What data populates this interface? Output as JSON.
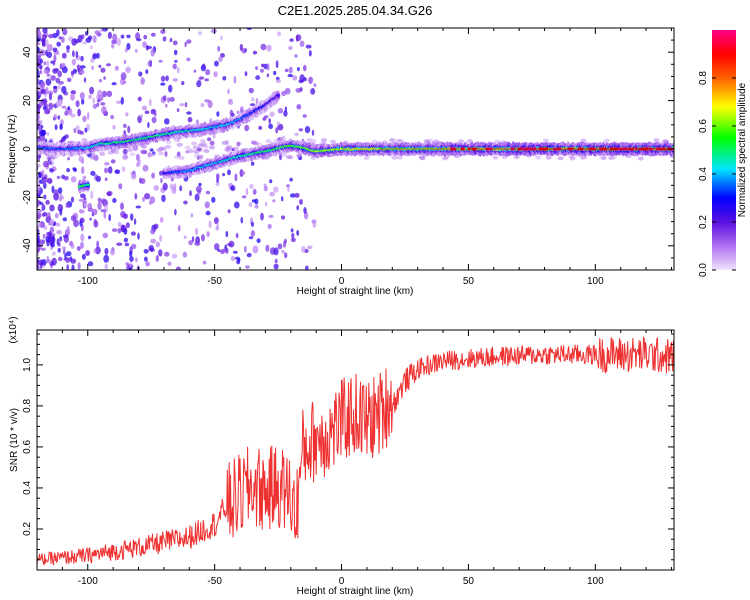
{
  "title": "C2E1.2025.285.04.34.G26",
  "chart_data": [
    {
      "type": "heatmap",
      "name": "spectrogram",
      "xlabel": "Height of straight line (km)",
      "ylabel": "Frequency (Hz)",
      "xlim": [
        -120,
        131
      ],
      "ylim": [
        -50,
        50
      ],
      "x_ticks": [
        -100,
        -50,
        0,
        50,
        100
      ],
      "y_ticks": [
        -40,
        -20,
        0,
        20,
        40
      ],
      "colorbar": {
        "label": "Normalized spectral amplitude",
        "range": [
          0,
          1
        ],
        "ticks": [
          0.0,
          0.2,
          0.4,
          0.6,
          0.8
        ],
        "colors": [
          "#e8d4f8",
          "#8a2be2",
          "#0000ff",
          "#00ffff",
          "#00ff00",
          "#ffff00",
          "#ff6600",
          "#ff0000",
          "#ff0080"
        ]
      },
      "tracks": [
        {
          "name": "main",
          "points": [
            [
              -120,
              0.5,
              0.4
            ],
            [
              -110,
              0,
              0.35
            ],
            [
              -100,
              0.5,
              0.45
            ],
            [
              -95,
              2,
              0.5
            ],
            [
              -85,
              3,
              0.55
            ],
            [
              -75,
              5,
              0.55
            ],
            [
              -65,
              7,
              0.5
            ],
            [
              -55,
              8,
              0.45
            ],
            [
              -50,
              9,
              0.45
            ],
            [
              -45,
              10,
              0.45
            ],
            [
              -40,
              12,
              0.4
            ],
            [
              -35,
              15,
              0.35
            ],
            [
              -30,
              18,
              0.3
            ],
            [
              -25,
              22,
              0.25
            ]
          ]
        },
        {
          "name": "lower",
          "points": [
            [
              -70,
              -10,
              0.3
            ],
            [
              -60,
              -9,
              0.4
            ],
            [
              -50,
              -6,
              0.45
            ],
            [
              -40,
              -3,
              0.5
            ],
            [
              -30,
              -1,
              0.55
            ],
            [
              -20,
              1.5,
              0.6
            ],
            [
              -15,
              0.5,
              0.6
            ],
            [
              -10,
              -1,
              0.65
            ],
            [
              0,
              0,
              0.7
            ],
            [
              10,
              0,
              0.75
            ],
            [
              20,
              0,
              0.7
            ],
            [
              40,
              0,
              0.75
            ],
            [
              60,
              0,
              0.8
            ],
            [
              80,
              0,
              0.85
            ],
            [
              100,
              0,
              0.85
            ],
            [
              120,
              0,
              0.85
            ],
            [
              131,
              0,
              0.85
            ]
          ]
        },
        {
          "name": "blob",
          "points": [
            [
              -103,
              -15.5,
              0.6
            ],
            [
              -100,
              -15,
              0.5
            ]
          ]
        }
      ]
    },
    {
      "type": "line",
      "name": "snr",
      "xlabel": "Height of straight line (km)",
      "ylabel": "SNR (10 * v/v)",
      "y_multiplier": "(x10⁴)",
      "xlim": [
        -120,
        131
      ],
      "ylim": [
        0,
        1.17
      ],
      "x_ticks": [
        -100,
        -50,
        0,
        50,
        100
      ],
      "y_ticks": [
        0.2,
        0.4,
        0.6,
        0.8,
        1.0
      ],
      "color": "#ee3030",
      "trend": [
        [
          -120,
          0.02
        ],
        [
          -100,
          0.03
        ],
        [
          -80,
          0.06
        ],
        [
          -60,
          0.1
        ],
        [
          -50,
          0.16
        ],
        [
          -45,
          0.25
        ],
        [
          -40,
          0.3
        ],
        [
          -35,
          0.35
        ],
        [
          -30,
          0.32
        ],
        [
          -25,
          0.35
        ],
        [
          -20,
          0.3
        ],
        [
          -18,
          0.2
        ],
        [
          -15,
          0.55
        ],
        [
          -10,
          0.6
        ],
        [
          -5,
          0.62
        ],
        [
          0,
          0.68
        ],
        [
          5,
          0.72
        ],
        [
          10,
          0.68
        ],
        [
          15,
          0.72
        ],
        [
          20,
          0.8
        ],
        [
          25,
          0.92
        ],
        [
          30,
          0.98
        ],
        [
          40,
          1.02
        ],
        [
          50,
          1.03
        ],
        [
          60,
          1.04
        ],
        [
          80,
          1.05
        ],
        [
          100,
          1.05
        ],
        [
          120,
          1.05
        ],
        [
          131,
          1.04
        ]
      ]
    }
  ],
  "tick_labels": {
    "x": [
      "-100",
      "-50",
      "0",
      "50",
      "100"
    ],
    "spec_y": [
      "-40",
      "-20",
      "0",
      "20",
      "40"
    ],
    "snr_y": [
      "0.2",
      "0.4",
      "0.6",
      "0.8",
      "1.0"
    ],
    "colorbar": [
      "0.0",
      "0.2",
      "0.4",
      "0.6",
      "0.8"
    ]
  }
}
